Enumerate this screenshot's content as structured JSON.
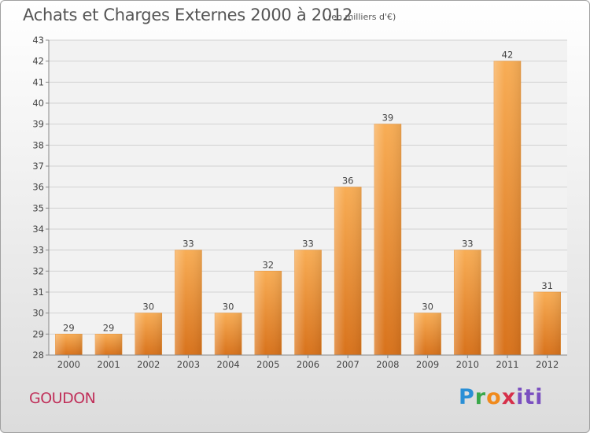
{
  "title": "Achats et Charges Externes 2000 à 2012",
  "unit_note": "(en milliers d'€)",
  "commune": "GOUDON",
  "logo": {
    "text": "Proxiti",
    "parts": [
      "P",
      "r",
      "o",
      "x",
      "iti"
    ]
  },
  "colors": {
    "bar_light": "#f7a94f",
    "bar_dark": "#d9731c",
    "title": "#555555",
    "commune": "#c0305a",
    "grid": "#d2d2d2"
  },
  "chart_data": {
    "type": "bar",
    "categories": [
      "2000",
      "2001",
      "2002",
      "2003",
      "2004",
      "2005",
      "2006",
      "2007",
      "2008",
      "2009",
      "2010",
      "2011",
      "2012"
    ],
    "values": [
      29,
      29,
      30,
      33,
      30,
      32,
      33,
      36,
      39,
      30,
      33,
      42,
      31
    ],
    "ylim": [
      28,
      43
    ],
    "yticks": [
      28,
      29,
      30,
      31,
      32,
      33,
      34,
      35,
      36,
      37,
      38,
      39,
      40,
      41,
      42,
      43
    ],
    "grid": true,
    "xlabel": "",
    "ylabel": ""
  }
}
